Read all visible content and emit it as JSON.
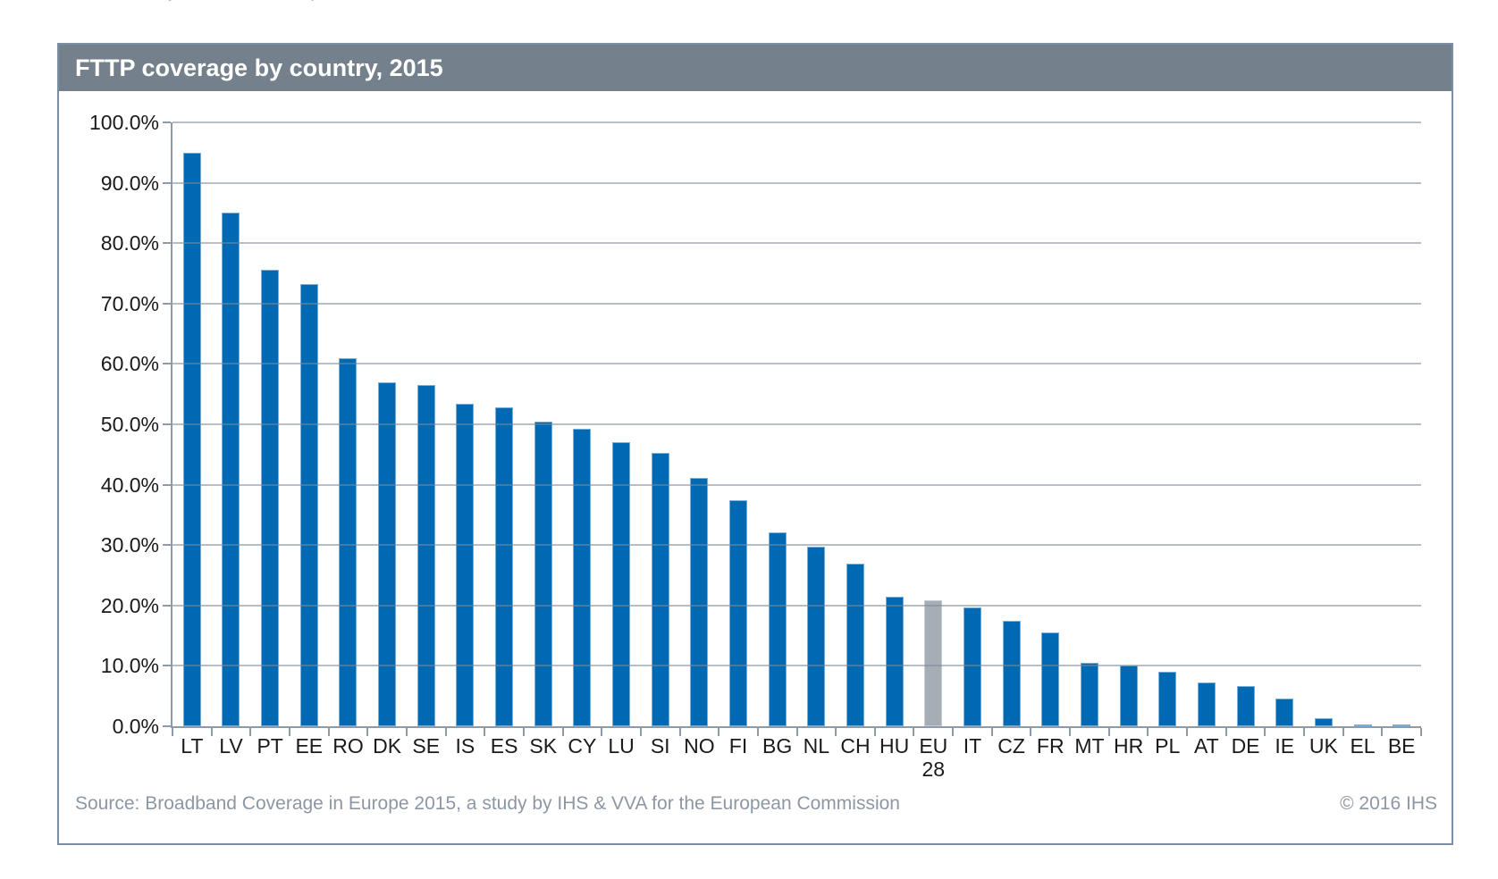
{
  "header": {
    "title": "FTTP coverage by country, 2015"
  },
  "footer": {
    "source": "Source: Broadband Coverage in Europe 2015, a study by IHS & VVA for the European Commission",
    "copyright": "© 2016 IHS"
  },
  "colors": {
    "bar_blue": "#0069b4",
    "bar_highlight_gray": "#a6adb4",
    "header_background": "#75808d",
    "box_border": "#7b8ea3",
    "gridline": "#7d8999",
    "axis_text": "#1a1a1a",
    "footer_text": "#8d97a3"
  },
  "chart_data": {
    "type": "bar",
    "title": "FTTP coverage by country, 2015",
    "xlabel": "",
    "ylabel": "",
    "ylim": [
      0,
      100
    ],
    "grid": true,
    "legend": false,
    "categories": [
      "LT",
      "LV",
      "PT",
      "EE",
      "RO",
      "DK",
      "SE",
      "IS",
      "ES",
      "SK",
      "CY",
      "LU",
      "SI",
      "NO",
      "FI",
      "BG",
      "NL",
      "CH",
      "HU",
      "EU 28",
      "IT",
      "CZ",
      "FR",
      "MT",
      "HR",
      "PL",
      "AT",
      "DE",
      "IE",
      "UK",
      "EL",
      "BE"
    ],
    "values": [
      95.0,
      85.0,
      75.6,
      73.2,
      61.0,
      57.0,
      56.5,
      53.4,
      52.8,
      50.4,
      49.2,
      47.0,
      45.2,
      41.2,
      37.5,
      32.1,
      29.7,
      26.9,
      21.4,
      20.8,
      19.7,
      17.4,
      15.6,
      10.5,
      10.0,
      9.0,
      7.3,
      6.6,
      4.6,
      1.4,
      0.3,
      0.3
    ],
    "highlight": {
      "category": "EU 28",
      "index": 19
    },
    "yticks": [
      {
        "value": 0,
        "label": "0.0%"
      },
      {
        "value": 10,
        "label": "10.0%"
      },
      {
        "value": 20,
        "label": "20.0%"
      },
      {
        "value": 30,
        "label": "30.0%"
      },
      {
        "value": 40,
        "label": "40.0%"
      },
      {
        "value": 50,
        "label": "50.0%"
      },
      {
        "value": 60,
        "label": "60.0%"
      },
      {
        "value": 70,
        "label": "70.0%"
      },
      {
        "value": 80,
        "label": "80.0%"
      },
      {
        "value": 90,
        "label": "90.0%"
      },
      {
        "value": 100,
        "label": "100.0%"
      }
    ]
  }
}
